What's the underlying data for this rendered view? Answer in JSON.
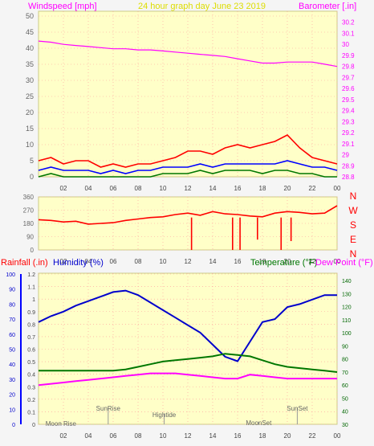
{
  "colors": {
    "background": "#f5f5f5",
    "plot_bg": "#ffffc8",
    "grid": "#ff9999",
    "wind": "#ff0000",
    "gust": "#0000ff",
    "avg": "#007700",
    "barometer": "#ff00ff",
    "humidity": "#0000cc",
    "temperature": "#007700",
    "dewpoint": "#ff00ff",
    "title": "#dddd00",
    "rain_axis": "#0000ff"
  },
  "chart_data": [
    {
      "type": "line",
      "title": "24 hour graph day   June 23 2019",
      "ylabel_left": "Windspeed [mph]",
      "ylabel_right": "Barometer [.in]",
      "x_ticks": [
        "02",
        "04",
        "06",
        "08",
        "10",
        "12",
        "14",
        "16",
        "18",
        "20",
        "22",
        "00"
      ],
      "ylim_left": [
        0,
        50
      ],
      "yticks_left": [
        "0",
        "5",
        "10",
        "15",
        "20",
        "25",
        "30",
        "35",
        "40",
        "45",
        "50"
      ],
      "ylim_right": [
        28.8,
        30.3
      ],
      "yticks_right": [
        "28.8",
        "28.9",
        "29",
        "29.1",
        "29.2",
        "29.3",
        "29.4",
        "29.5",
        "29.6",
        "29.7",
        "29.8",
        "29.9",
        "30",
        "30.1",
        "30.2"
      ],
      "grid": true,
      "series": [
        {
          "name": "Barometer",
          "axis": "right",
          "x": [
            0,
            1,
            2,
            3,
            4,
            5,
            6,
            7,
            8,
            9,
            10,
            11,
            12,
            13,
            14,
            15,
            16,
            17,
            18,
            19,
            20,
            21,
            22,
            23,
            24
          ],
          "values": [
            30.03,
            30.02,
            30.0,
            29.99,
            29.98,
            29.97,
            29.96,
            29.96,
            29.95,
            29.95,
            29.94,
            29.93,
            29.92,
            29.91,
            29.9,
            29.89,
            29.87,
            29.85,
            29.83,
            29.83,
            29.84,
            29.84,
            29.84,
            29.82,
            29.8
          ]
        },
        {
          "name": "Gust",
          "axis": "left",
          "x": [
            0,
            1,
            2,
            3,
            4,
            5,
            6,
            7,
            8,
            9,
            10,
            11,
            12,
            13,
            14,
            15,
            16,
            17,
            18,
            19,
            20,
            21,
            22,
            23,
            24
          ],
          "values": [
            5,
            6,
            4,
            5,
            5,
            3,
            4,
            3,
            4,
            4,
            5,
            6,
            8,
            8,
            7,
            9,
            10,
            9,
            10,
            11,
            13,
            9,
            6,
            5,
            4
          ]
        },
        {
          "name": "Wind",
          "axis": "left",
          "x": [
            0,
            1,
            2,
            3,
            4,
            5,
            6,
            7,
            8,
            9,
            10,
            11,
            12,
            13,
            14,
            15,
            16,
            17,
            18,
            19,
            20,
            21,
            22,
            23,
            24
          ],
          "values": [
            2,
            3,
            2,
            2,
            2,
            1,
            2,
            1,
            2,
            2,
            3,
            3,
            3,
            4,
            3,
            4,
            4,
            4,
            4,
            4,
            5,
            4,
            3,
            3,
            2
          ]
        },
        {
          "name": "Average",
          "axis": "left",
          "x": [
            0,
            1,
            2,
            3,
            4,
            5,
            6,
            7,
            8,
            9,
            10,
            11,
            12,
            13,
            14,
            15,
            16,
            17,
            18,
            19,
            20,
            21,
            22,
            23,
            24
          ],
          "values": [
            0,
            1,
            0,
            0,
            0,
            0,
            0,
            0,
            0,
            0,
            1,
            1,
            1,
            2,
            1,
            2,
            2,
            2,
            1,
            2,
            2,
            1,
            1,
            0,
            0
          ]
        }
      ]
    },
    {
      "type": "line",
      "ylabel_right": [
        "N",
        "W",
        "S",
        "E",
        "N"
      ],
      "x_ticks": [
        "02",
        "04",
        "06",
        "08",
        "10",
        "12",
        "14",
        "16",
        "18",
        "20",
        "22",
        "00"
      ],
      "ylim_left": [
        0,
        360
      ],
      "yticks_left": [
        "0",
        "90",
        "180",
        "270",
        "360"
      ],
      "grid": true,
      "series": [
        {
          "name": "Direction",
          "axis": "left",
          "x": [
            0,
            1,
            2,
            3,
            4,
            5,
            6,
            7,
            8,
            9,
            10,
            11,
            12,
            13,
            14,
            15,
            16,
            17,
            18,
            19,
            20,
            21,
            22,
            23,
            24
          ],
          "values": [
            205,
            200,
            190,
            195,
            175,
            180,
            185,
            200,
            210,
            220,
            225,
            240,
            250,
            235,
            260,
            245,
            240,
            230,
            225,
            250,
            260,
            255,
            245,
            250,
            300
          ]
        },
        {
          "name": "Spikes",
          "axis": "left",
          "x": [
            12.3,
            15.6,
            16.2,
            17.6,
            19.5,
            20.3
          ],
          "values": [
            0,
            0,
            0,
            70,
            0,
            60
          ]
        }
      ]
    },
    {
      "type": "line",
      "ylabel_left": "Rainfall (.in)",
      "ylabel_left2": "Humidity (%)",
      "ylabel_right": "Temperature (°F)",
      "ylabel_right2": "Dew Point (°F)",
      "x_ticks": [
        "02",
        "04",
        "06",
        "08",
        "10",
        "12",
        "14",
        "16",
        "18",
        "20",
        "22",
        "00"
      ],
      "rain_ticks": [
        "0",
        "0.1",
        "0.2",
        "0.3",
        "0.4",
        "0.5",
        "0.6",
        "0.7",
        "0.8",
        "0.9",
        "1",
        "1.1",
        "1.2"
      ],
      "humidity_ticks": [
        "0",
        "10",
        "20",
        "30",
        "40",
        "50",
        "60",
        "70",
        "80",
        "90",
        "100"
      ],
      "temp_ticks": [
        "30",
        "40",
        "50",
        "60",
        "70",
        "80",
        "90",
        "100",
        "110",
        "120",
        "130",
        "140"
      ],
      "ylim_rain": [
        0,
        1.2
      ],
      "ylim_humidity": [
        0,
        100
      ],
      "ylim_temp": [
        30,
        145
      ],
      "grid": true,
      "events": [
        {
          "label": "Moon Rise",
          "hour": 1.8
        },
        {
          "label": "SunRise",
          "hour": 5.6
        },
        {
          "label": "Hightide",
          "hour": 10.1
        },
        {
          "label": "MoonSet",
          "hour": 17.7
        },
        {
          "label": "SunSet",
          "hour": 20.8
        }
      ],
      "series": [
        {
          "name": "Humidity",
          "axis": "humidity",
          "x": [
            0,
            1,
            2,
            3,
            4,
            5,
            6,
            7,
            8,
            9,
            10,
            11,
            12,
            13,
            14,
            15,
            16,
            17,
            18,
            19,
            20,
            21,
            22,
            23,
            24
          ],
          "values": [
            68,
            72,
            75,
            79,
            82,
            85,
            88,
            89,
            86,
            81,
            76,
            71,
            66,
            61,
            53,
            45,
            42,
            55,
            68,
            70,
            78,
            80,
            83,
            86,
            86
          ]
        },
        {
          "name": "Temperature",
          "axis": "temp",
          "x": [
            0,
            1,
            2,
            3,
            4,
            5,
            6,
            7,
            8,
            9,
            10,
            11,
            12,
            13,
            14,
            15,
            16,
            17,
            18,
            19,
            20,
            21,
            22,
            23,
            24
          ],
          "values": [
            71,
            71,
            71,
            71,
            71,
            71,
            71,
            72,
            74,
            76,
            78,
            79,
            80,
            81,
            82,
            84,
            83,
            82,
            79,
            76,
            74,
            73,
            72,
            71,
            70
          ]
        },
        {
          "name": "Dew Point",
          "axis": "temp",
          "x": [
            0,
            1,
            2,
            3,
            4,
            5,
            6,
            7,
            8,
            9,
            10,
            11,
            12,
            13,
            14,
            15,
            16,
            17,
            18,
            19,
            20,
            21,
            22,
            23,
            24
          ],
          "values": [
            60,
            61,
            62,
            63,
            64,
            65,
            66,
            67,
            68,
            69,
            69,
            69,
            68,
            67,
            66,
            65,
            65,
            68,
            67,
            66,
            65,
            65,
            65,
            65,
            65
          ]
        }
      ]
    }
  ]
}
